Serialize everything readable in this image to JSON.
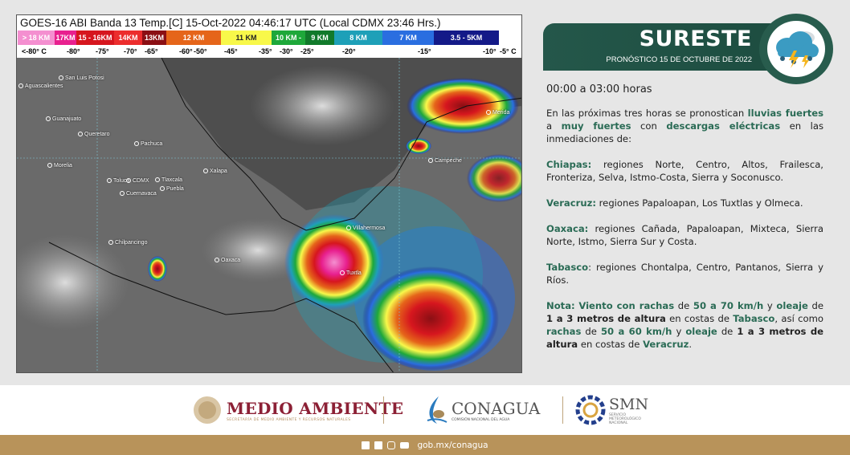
{
  "satellite": {
    "title": "GOES-16 ABI Banda 13 Temp.[C] 15-Oct-2022 04:46:17 UTC (Local CDMX  23:46 Hrs.)",
    "scale": [
      {
        "label": "> 18 KM",
        "color": "#f48fd0"
      },
      {
        "label": "17KM",
        "color": "#e8208f"
      },
      {
        "label": "15 - 16KM",
        "color": "#d6161e"
      },
      {
        "label": "14KM",
        "color": "#ec2d2d"
      },
      {
        "label": "13KM",
        "color": "#8b0f14"
      },
      {
        "label": "12 KM",
        "color": "#e5651a"
      },
      {
        "label": "11 KM",
        "color": "#f8f84a"
      },
      {
        "label": "10 KM -",
        "color": "#1ea83a"
      },
      {
        "label": "9 KM",
        "color": "#117a2b"
      },
      {
        "label": "8 KM",
        "color": "#1ea0b8"
      },
      {
        "label": "7 KM",
        "color": "#2a6ee0"
      },
      {
        "label": "3.5 - 5KM",
        "color": "#141a88"
      }
    ],
    "temps": [
      "<-80° C",
      "-80°",
      "-75°",
      "-70°",
      "-65°",
      "-60°",
      "-50°",
      "-45°",
      "-35°",
      "-30°",
      "-25°",
      "-20°",
      "-15°",
      "-10°",
      "-5° C"
    ],
    "cities": [
      "Aguascalientes",
      "San Luis Potosi",
      "Guanajuato",
      "Queretaro",
      "Morelia",
      "Pachuca",
      "Toluca",
      "CDMX",
      "Tlaxcala",
      "Puebla",
      "Cuernavaca",
      "Xalapa",
      "Chilpancingo",
      "Oaxaca",
      "Villahermosa",
      "Tuxtla",
      "Campeche",
      "Merida"
    ]
  },
  "header": {
    "region": "SURESTE",
    "subtitle": "PRONÓSTICO 15 DE OCTUBRE DE 2022",
    "icon": "storm-cloud-icon"
  },
  "forecast": {
    "hours": "00:00 a 03:00 horas",
    "paragraphs": [
      [
        {
          "t": "En las próximas tres horas se pronostican "
        },
        {
          "t": "lluvias fuertes",
          "s": "hl"
        },
        {
          "t": " a "
        },
        {
          "t": "muy fuertes",
          "s": "hl"
        },
        {
          "t": " con "
        },
        {
          "t": "descargas eléctricas",
          "s": "hl"
        },
        {
          "t": " en las inmediaciones de:"
        }
      ],
      [
        {
          "t": "Chiapas:",
          "s": "hl"
        },
        {
          "t": " regiones Norte, Centro, Altos, Frailesca, Fronteriza, Selva, Istmo-Costa, Sierra y Soconusco."
        }
      ],
      [
        {
          "t": "Veracruz:",
          "s": "hl"
        },
        {
          "t": " regiones Papaloapan, Los Tuxtlas y Olmeca."
        }
      ],
      [
        {
          "t": "Oaxaca:",
          "s": "hl"
        },
        {
          "t": " regiones Cañada, Papaloapan, Mixteca, Sierra Norte, Istmo, Sierra Sur y Costa."
        }
      ],
      [
        {
          "t": "Tabasco",
          "s": "hl"
        },
        {
          "t": ": regiones Chontalpa, Centro, Pantanos, Sierra y Ríos."
        }
      ],
      [
        {
          "t": "Nota:",
          "s": "hl"
        },
        {
          "t": " "
        },
        {
          "t": "Viento con rachas",
          "s": "hl"
        },
        {
          "t": " de "
        },
        {
          "t": "50 a 70 km/h",
          "s": "hl"
        },
        {
          "t": " y "
        },
        {
          "t": "oleaje",
          "s": "hl"
        },
        {
          "t": " de "
        },
        {
          "t": "1 a 3 metros de altura",
          "s": "bk"
        },
        {
          "t": " en costas de "
        },
        {
          "t": "Tabasco",
          "s": "hl"
        },
        {
          "t": ", así como "
        },
        {
          "t": "rachas",
          "s": "hl"
        },
        {
          "t": " de "
        },
        {
          "t": "50 a 60 km/h",
          "s": "hl"
        },
        {
          "t": " y "
        },
        {
          "t": "oleaje",
          "s": "hl"
        },
        {
          "t": " de "
        },
        {
          "t": "1 a 3 metros de altura",
          "s": "bk"
        },
        {
          "t": " en costas de "
        },
        {
          "t": "Veracruz",
          "s": "hl"
        },
        {
          "t": "."
        }
      ]
    ]
  },
  "footer": {
    "medio_ambiente": "MEDIO AMBIENTE",
    "medio_ambiente_sub": "SECRETARÍA DE MEDIO AMBIENTE Y RECURSOS NATURALES",
    "conagua": "CONAGUA",
    "conagua_sub": "COMISIÓN NACIONAL DEL AGUA",
    "smn": "SMN",
    "smn_sub": "SERVICIO METEOROLÓGICO NACIONAL",
    "url": "gob.mx/conagua",
    "social_icons": [
      "facebook-icon",
      "twitter-icon",
      "instagram-icon",
      "youtube-icon"
    ]
  }
}
